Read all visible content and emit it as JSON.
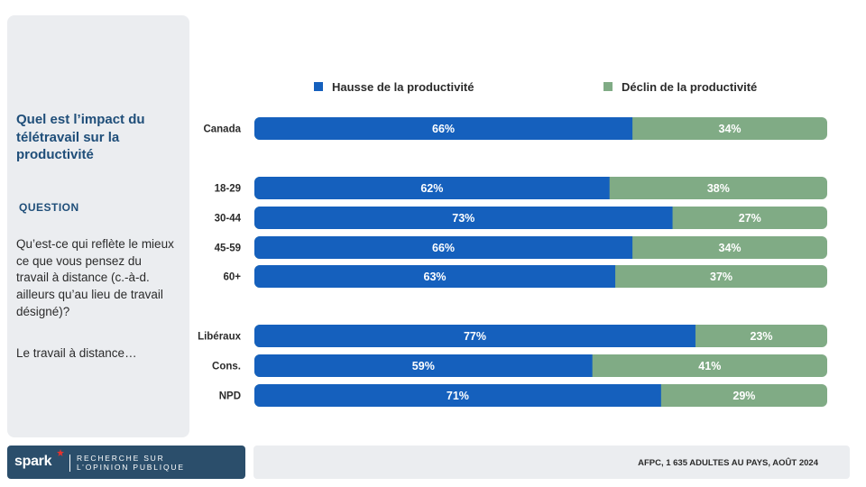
{
  "sidebar": {
    "title": "Quel est l’impact du télétravail sur la productivité",
    "question_label": "QUESTION",
    "question_text": "Qu’est-ce qui reflète le mieux ce que vous pensez du travail à distance (c.-à-d. ailleurs qu’au lieu de travail désigné)?",
    "question_lead": "Le travail à distance…"
  },
  "logo": {
    "word": "spark",
    "subtitle_line1": "RECHERCHE SUR",
    "subtitle_line2": "L’OPINION PUBLIQUE",
    "star_color": "#e8322d"
  },
  "footer": {
    "source": "AFPC, 1 635 ADULTES AU PAYS, AOÛT 2024"
  },
  "chart_data": {
    "type": "bar",
    "orientation": "horizontal",
    "stacked": true,
    "legend_position": "top",
    "xlim": [
      0,
      100
    ],
    "categories": [
      "Canada",
      "18-29",
      "30-44",
      "45-59",
      "60+",
      "Libéraux",
      "Cons.",
      "NPD"
    ],
    "groups": [
      [
        "Canada"
      ],
      [
        "18-29",
        "30-44",
        "45-59",
        "60+"
      ],
      [
        "Libéraux",
        "Cons.",
        "NPD"
      ]
    ],
    "series": [
      {
        "name": "Hausse de la productivité",
        "color": "#1560bd",
        "values": [
          66,
          62,
          73,
          66,
          63,
          77,
          59,
          71
        ],
        "labels": [
          "66%",
          "62%",
          "73%",
          "66%",
          "63%",
          "77%",
          "59%",
          "71%"
        ]
      },
      {
        "name": "Déclin de la productivité",
        "color": "#80ab85",
        "values": [
          34,
          38,
          27,
          34,
          37,
          23,
          41,
          29
        ],
        "labels": [
          "34%",
          "38%",
          "27%",
          "34%",
          "37%",
          "23%",
          "41%",
          "29%"
        ]
      }
    ]
  }
}
